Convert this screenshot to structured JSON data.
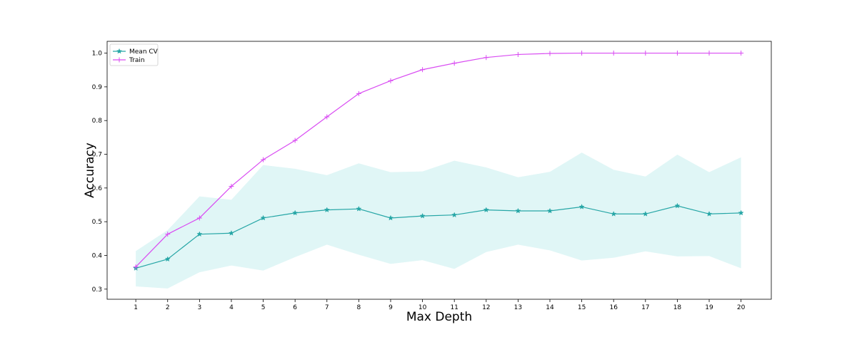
{
  "chart_data": {
    "type": "line",
    "title": "",
    "xlabel": "Max Depth",
    "ylabel": "Accuracy",
    "x": [
      1,
      2,
      3,
      4,
      5,
      6,
      7,
      8,
      9,
      10,
      11,
      12,
      13,
      14,
      15,
      16,
      17,
      18,
      19,
      20
    ],
    "xlim": [
      0.1,
      20.95
    ],
    "ylim": [
      0.27,
      1.035
    ],
    "yticks": [
      0.3,
      0.4,
      0.5,
      0.6,
      0.7,
      0.8,
      0.9,
      1.0
    ],
    "ytick_labels": [
      "0.3",
      "0.4",
      "0.5",
      "0.6",
      "0.7",
      "0.8",
      "0.9",
      "1.0"
    ],
    "xtick_labels": [
      "1",
      "2",
      "3",
      "4",
      "5",
      "6",
      "7",
      "8",
      "9",
      "10",
      "11",
      "12",
      "13",
      "14",
      "15",
      "16",
      "17",
      "18",
      "19",
      "20"
    ],
    "grid": false,
    "legend_position": "top-left",
    "series": [
      {
        "name": "Mean CV",
        "color": "#26a6a6",
        "marker": "star",
        "values": [
          0.362,
          0.389,
          0.463,
          0.466,
          0.511,
          0.526,
          0.535,
          0.538,
          0.511,
          0.517,
          0.52,
          0.535,
          0.532,
          0.532,
          0.544,
          0.523,
          0.523,
          0.547,
          0.523,
          0.526
        ]
      },
      {
        "name": "Train",
        "color": "#d94cf2",
        "marker": "plus",
        "values": [
          0.366,
          0.463,
          0.511,
          0.605,
          0.684,
          0.741,
          0.811,
          0.88,
          0.918,
          0.951,
          0.97,
          0.987,
          0.996,
          0.999,
          1.0,
          1.0,
          1.0,
          1.0,
          1.0,
          1.0
        ]
      }
    ],
    "band": {
      "of_series": "Mean CV",
      "color": "#e0f6f6",
      "lower": [
        0.308,
        0.302,
        0.35,
        0.37,
        0.355,
        0.395,
        0.432,
        0.402,
        0.375,
        0.386,
        0.36,
        0.41,
        0.432,
        0.415,
        0.385,
        0.393,
        0.412,
        0.397,
        0.398,
        0.362
      ],
      "upper": [
        0.413,
        0.475,
        0.575,
        0.565,
        0.668,
        0.657,
        0.638,
        0.673,
        0.647,
        0.649,
        0.681,
        0.661,
        0.632,
        0.648,
        0.705,
        0.654,
        0.634,
        0.699,
        0.647,
        0.691
      ]
    }
  }
}
